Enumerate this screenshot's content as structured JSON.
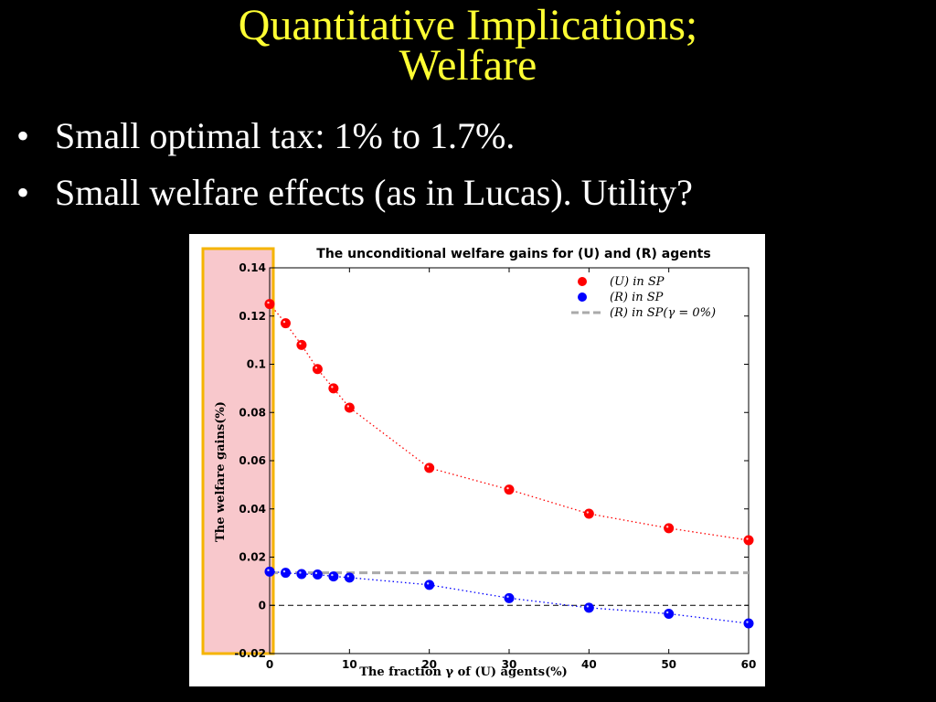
{
  "slide": {
    "title_line1": "Quantitative Implications;",
    "title_line2": "Welfare",
    "bullets": [
      {
        "marker": "•",
        "text": "Small optimal tax: 1% to 1.7%."
      },
      {
        "marker": "•",
        "text": "Small welfare effects (as in Lucas). Utility?"
      }
    ]
  },
  "colors": {
    "title": "#ffff33",
    "series_u": "#ff0000",
    "series_r": "#0000ff",
    "reference": "#aaaaaa",
    "highlight_fill": "#f8c8cc",
    "highlight_border": "#f5b400"
  },
  "chart_data": {
    "type": "scatter",
    "title": "The unconditional welfare gains for (U) and (R) agents",
    "xlabel": "The fraction γ of (U) agents(%)",
    "ylabel": "The welfare gains(%)",
    "xlim": [
      0,
      60
    ],
    "ylim": [
      -0.02,
      0.14
    ],
    "xticks": [
      "0",
      "10",
      "20",
      "30",
      "40",
      "50",
      "60"
    ],
    "yticks": [
      "-0.02",
      "0",
      "0.02",
      "0.04",
      "0.06",
      "0.08",
      "0.1",
      "0.12",
      "0.14"
    ],
    "x": [
      0,
      2,
      4,
      6,
      8,
      10,
      20,
      30,
      40,
      50,
      60
    ],
    "series": [
      {
        "name": "(U) in SP",
        "values": [
          0.125,
          0.117,
          0.108,
          0.098,
          0.09,
          0.082,
          0.057,
          0.048,
          0.038,
          0.032,
          0.027
        ]
      },
      {
        "name": "(R) in SP",
        "values": [
          0.014,
          0.0135,
          0.013,
          0.0128,
          0.012,
          0.0115,
          0.0085,
          0.003,
          -0.001,
          -0.0035,
          -0.0075
        ]
      }
    ],
    "reference_line": {
      "name": "(R) in SP(γ = 0%)",
      "value": 0.0135
    },
    "zero_line": 0,
    "legend_position": "top-right",
    "grid": false
  }
}
